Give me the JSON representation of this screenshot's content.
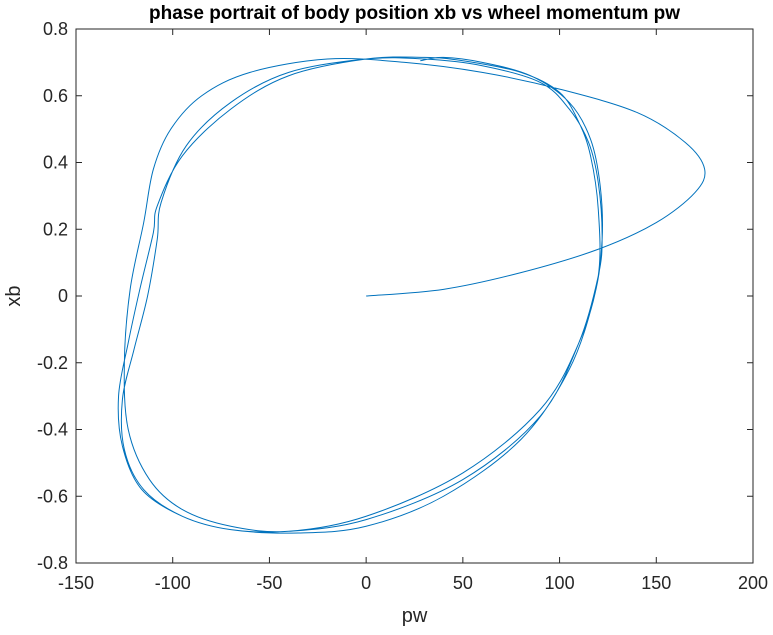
{
  "chart_data": {
    "type": "line",
    "title": "phase portrait of body position xb vs wheel momentum pw",
    "xlabel": "pw",
    "ylabel": "xb",
    "xlim": [
      -150,
      200
    ],
    "ylim": [
      -0.8,
      0.8
    ],
    "xticks": [
      -150,
      -100,
      -50,
      0,
      50,
      100,
      150,
      200
    ],
    "yticks": [
      -0.8,
      -0.6,
      -0.4,
      -0.2,
      0,
      0.2,
      0.4,
      0.6,
      0.8
    ],
    "xtick_labels": [
      "-150",
      "-100",
      "-50",
      "0",
      "50",
      "100",
      "150",
      "200"
    ],
    "ytick_labels": [
      "-0.8",
      "-0.6",
      "-0.4",
      "-0.2",
      "0",
      "0.2",
      "0.4",
      "0.6",
      "0.8"
    ],
    "grid": false,
    "line_color": "#0072BD",
    "series": [
      {
        "x": [
          0,
          40,
          80,
          120,
          150,
          170,
          175,
          165,
          140,
          100,
          60,
          20,
          -20,
          -60,
          -85,
          -101,
          -110,
          -115,
          -122,
          -125,
          -123,
          -112,
          -95,
          -70,
          -40,
          0,
          50,
          90,
          110,
          120,
          120,
          116,
          110,
          100,
          80,
          50,
          30,
          0,
          -40,
          -70,
          -95,
          -108,
          -110,
          -117,
          -123,
          -128,
          -126,
          -116,
          -95,
          -70,
          -40,
          0,
          50,
          90,
          110,
          120,
          122,
          120,
          115,
          105,
          90,
          60,
          30,
          0,
          -40,
          -70,
          -93,
          -106,
          -108,
          -113,
          -120,
          -126,
          -125,
          -115,
          -95,
          -70,
          -35,
          0,
          40,
          80,
          105,
          118,
          122,
          121,
          116,
          105,
          85,
          60,
          40,
          28
        ],
        "y": [
          0,
          0.02,
          0.07,
          0.14,
          0.22,
          0.31,
          0.38,
          0.46,
          0.55,
          0.62,
          0.67,
          0.7,
          0.71,
          0.67,
          0.6,
          0.5,
          0.38,
          0.22,
          0.02,
          -0.2,
          -0.4,
          -0.55,
          -0.64,
          -0.69,
          -0.705,
          -0.66,
          -0.53,
          -0.34,
          -0.14,
          0.06,
          0.26,
          0.42,
          0.52,
          0.61,
          0.67,
          0.705,
          0.715,
          0.71,
          0.66,
          0.56,
          0.42,
          0.27,
          0.19,
          0.02,
          -0.14,
          -0.3,
          -0.45,
          -0.58,
          -0.66,
          -0.7,
          -0.705,
          -0.67,
          -0.55,
          -0.36,
          -0.14,
          0.06,
          0.18,
          0.34,
          0.46,
          0.56,
          0.64,
          0.69,
          0.71,
          0.71,
          0.67,
          0.58,
          0.45,
          0.28,
          0.17,
          0.0,
          -0.16,
          -0.31,
          -0.46,
          -0.58,
          -0.66,
          -0.7,
          -0.71,
          -0.69,
          -0.6,
          -0.43,
          -0.22,
          0.0,
          0.17,
          0.33,
          0.47,
          0.58,
          0.66,
          0.7,
          0.715,
          0.705
        ]
      }
    ]
  }
}
